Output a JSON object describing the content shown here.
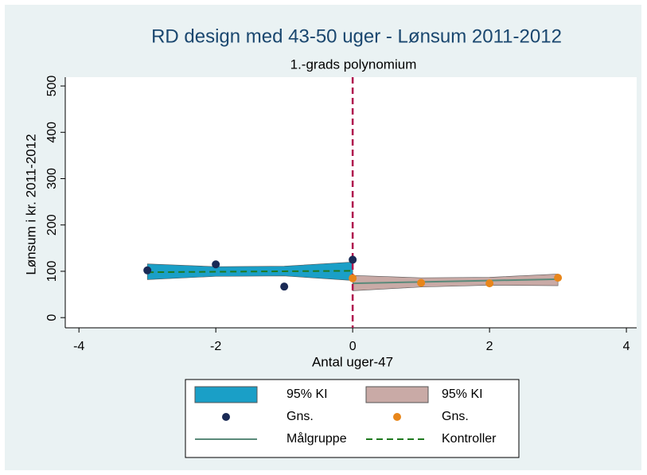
{
  "chart_data": {
    "type": "line",
    "title": "RD design med 43-50 uger - Lønsum 2011-2012",
    "subtitle": "1.-grads polynomium",
    "x_label": "Antal uger-47",
    "y_label": "Lønsum i kr. 2011-2012",
    "xlim": [
      -4.2,
      4.15
    ],
    "xticks": [
      -4,
      -2,
      0,
      2,
      4
    ],
    "ylim": [
      -22,
      519
    ],
    "yticks": [
      0,
      100,
      200,
      300,
      400,
      500
    ],
    "cutoff": {
      "x": 0,
      "color": "#b0124e"
    },
    "series": [
      {
        "name": "95% KI",
        "kind": "band",
        "color": "#1a9fc7",
        "x": [
          -3,
          -2,
          -1,
          0
        ],
        "lower": [
          82,
          89,
          90,
          80
        ],
        "upper": [
          116,
          110,
          111,
          120
        ]
      },
      {
        "name": "95% KI",
        "kind": "band",
        "color": "#c9aaa6",
        "x": [
          0,
          1,
          2,
          3
        ],
        "lower": [
          58,
          66,
          70,
          69
        ],
        "upper": [
          91,
          86,
          87,
          94
        ]
      },
      {
        "name": "Gns.",
        "kind": "scatter",
        "color": "#1a2a55",
        "x": [
          -3,
          -2,
          -1,
          0
        ],
        "values": [
          102,
          115,
          67,
          125
        ]
      },
      {
        "name": "Gns.",
        "kind": "scatter",
        "color": "#e8861a",
        "x": [
          0,
          1,
          2,
          3
        ],
        "values": [
          85,
          75,
          74,
          86
        ]
      },
      {
        "name": "Målgruppe",
        "kind": "line",
        "color": "#5a8a7a",
        "x": [
          0,
          1,
          2,
          3
        ],
        "values": [
          74,
          77,
          80,
          83
        ]
      },
      {
        "name": "Kontroller",
        "kind": "line",
        "dashed": true,
        "color": "#1f7a1f",
        "x": [
          -3,
          -2,
          -1,
          0
        ],
        "values": [
          98,
          99,
          100,
          101
        ]
      }
    ]
  }
}
